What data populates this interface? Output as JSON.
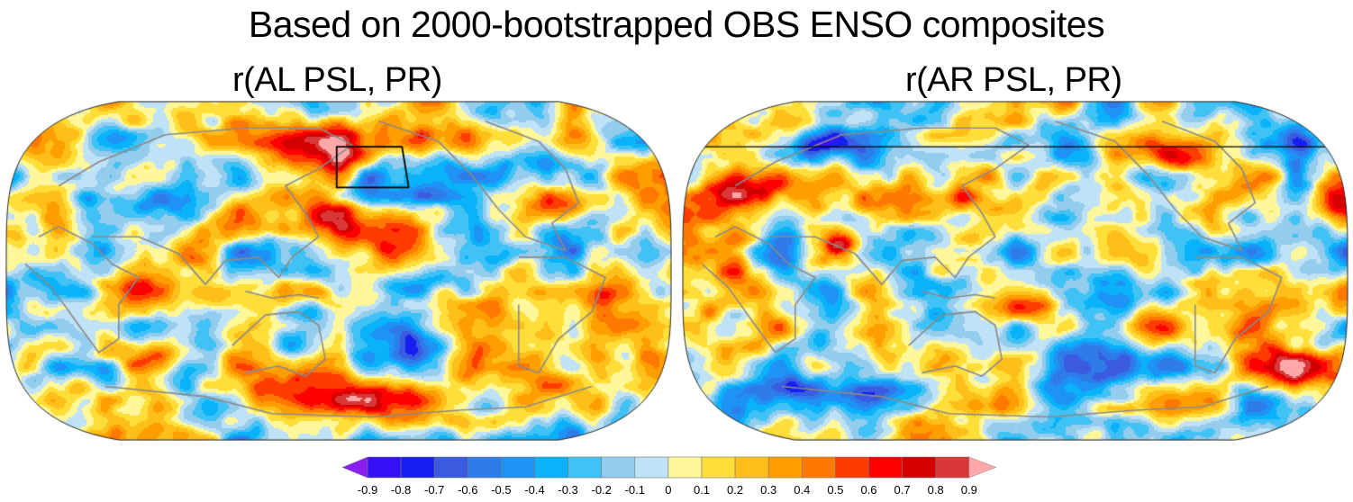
{
  "title": "Based on 2000-bootstrapped OBS ENSO composites",
  "panels": [
    {
      "title": "r(AL PSL, PR)",
      "projection": "Robinson (Pacific-centered)",
      "region_box": {
        "label": "AL PSL box",
        "lon": [
          160,
          220
        ],
        "lat": [
          40,
          60
        ]
      },
      "features": [
        {
          "desc": "Strong positive over Kamchatka / Sea of Okhotsk",
          "approx_value": 0.55
        },
        {
          "desc": "Negative within boxed NE Pacific region",
          "approx_value": -0.4
        },
        {
          "desc": "Positive centre in subtropical North Pacific near Hawaii",
          "approx_value": 0.65
        },
        {
          "desc": "Negative band in tropical central/east Pacific",
          "approx_value": -0.35
        },
        {
          "desc": "Positive over Southern Ocean south of New Zealand",
          "approx_value": 0.6
        },
        {
          "desc": "Negative over South Pacific east of New Zealand",
          "approx_value": -0.55
        }
      ]
    },
    {
      "title": "r(AR PSL, PR)",
      "projection": "Robinson (Pacific-centered)",
      "region_box": {
        "label": "AR PSL region",
        "lat_line": 65
      },
      "features": [
        {
          "desc": "Strong positive over Eastern Europe / western Russia",
          "approx_value": 0.65
        },
        {
          "desc": "Positive band from central Asia to Japan",
          "approx_value": 0.5
        },
        {
          "desc": "Negative over Arctic north of Eurasia and Greenland",
          "approx_value": -0.5
        },
        {
          "desc": "Negative patch over western Atlantic",
          "approx_value": -0.55
        },
        {
          "desc": "Strong positive over South Atlantic off Brazil",
          "approx_value": 0.7
        },
        {
          "desc": "Negative over Southern Indian Ocean",
          "approx_value": -0.5
        }
      ]
    }
  ],
  "chart_data": {
    "type": "heatmap",
    "title": "Based on 2000-bootstrapped OBS ENSO composites",
    "subplots": [
      "r(AL PSL, PR)",
      "r(AR PSL, PR)"
    ],
    "colorbar": {
      "levels": [
        -0.9,
        -0.8,
        -0.7,
        -0.6,
        -0.5,
        -0.4,
        -0.3,
        -0.2,
        -0.1,
        0,
        0.1,
        0.2,
        0.3,
        0.4,
        0.5,
        0.6,
        0.7,
        0.8,
        0.9
      ],
      "tick_labels": [
        "-0.9",
        "-0.8",
        "-0.7",
        "-0.6",
        "-0.5",
        "-0.4",
        "-0.3",
        "-0.2",
        "-0.1",
        "0",
        "0.1",
        "0.2",
        "0.3",
        "0.4",
        "0.5",
        "0.6",
        "0.7",
        "0.8",
        "0.9"
      ],
      "colors": [
        "#8a1ef0",
        "#3512f5",
        "#1520f0",
        "#3a5be0",
        "#2f7ce8",
        "#1e93f5",
        "#09b2f9",
        "#40c2f5",
        "#93ccec",
        "#bfe2f6",
        "#fff79a",
        "#ffde3a",
        "#ffbf1a",
        "#ff9e00",
        "#ff7800",
        "#ff3c00",
        "#ff0000",
        "#d40000",
        "#da3838",
        "#ffa8aa"
      ],
      "extend": "both",
      "orientation": "horizontal",
      "placement": "bottom-center"
    },
    "value_range": [
      -1,
      1
    ]
  }
}
